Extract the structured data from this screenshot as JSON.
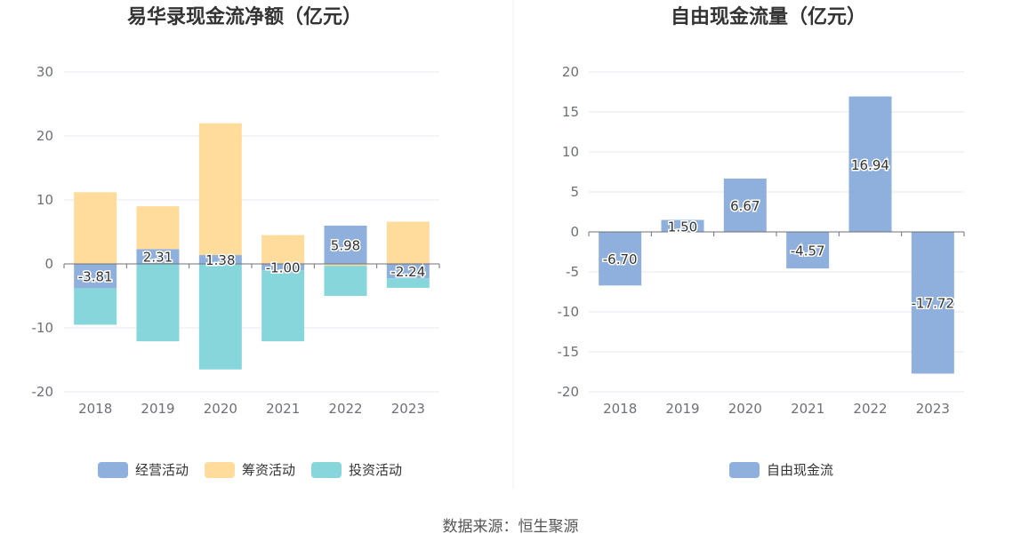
{
  "source": "数据来源：恒生聚源",
  "chart_data": [
    {
      "type": "bar",
      "stacked": true,
      "title": "易华录现金流净额（亿元）",
      "categories": [
        "2018",
        "2019",
        "2020",
        "2021",
        "2022",
        "2023"
      ],
      "ylim": [
        -20,
        30
      ],
      "yticks": [
        -20,
        -10,
        0,
        10,
        20,
        30
      ],
      "series": [
        {
          "name": "经营活动",
          "color": "#8fafdc",
          "values": [
            -3.81,
            2.31,
            1.38,
            -1.0,
            5.98,
            -2.24
          ],
          "labels": [
            "-3.81",
            "2.31",
            "1.38",
            "-1.00",
            "5.98",
            "-2.24"
          ]
        },
        {
          "name": "筹资活动",
          "color": "#ffdb9c",
          "values": [
            11.2,
            6.7,
            20.6,
            4.5,
            -0.3,
            6.6
          ]
        },
        {
          "name": "投资活动",
          "color": "#86d6db",
          "values": [
            -5.7,
            -12.1,
            -16.5,
            -11.1,
            -4.7,
            -1.5
          ]
        }
      ],
      "legend_position": "bottom"
    },
    {
      "type": "bar",
      "title": "自由现金流量（亿元）",
      "categories": [
        "2018",
        "2019",
        "2020",
        "2021",
        "2022",
        "2023"
      ],
      "ylim": [
        -20,
        20
      ],
      "yticks": [
        -20,
        -15,
        -10,
        -5,
        0,
        5,
        10,
        15,
        20
      ],
      "series": [
        {
          "name": "自由现金流",
          "color": "#8fafdc",
          "values": [
            -6.7,
            1.5,
            6.67,
            -4.57,
            16.94,
            -17.72
          ],
          "labels": [
            "-6.70",
            "1.50",
            "6.67",
            "-4.57",
            "16.94",
            "-17.72"
          ]
        }
      ],
      "legend_position": "bottom"
    }
  ]
}
